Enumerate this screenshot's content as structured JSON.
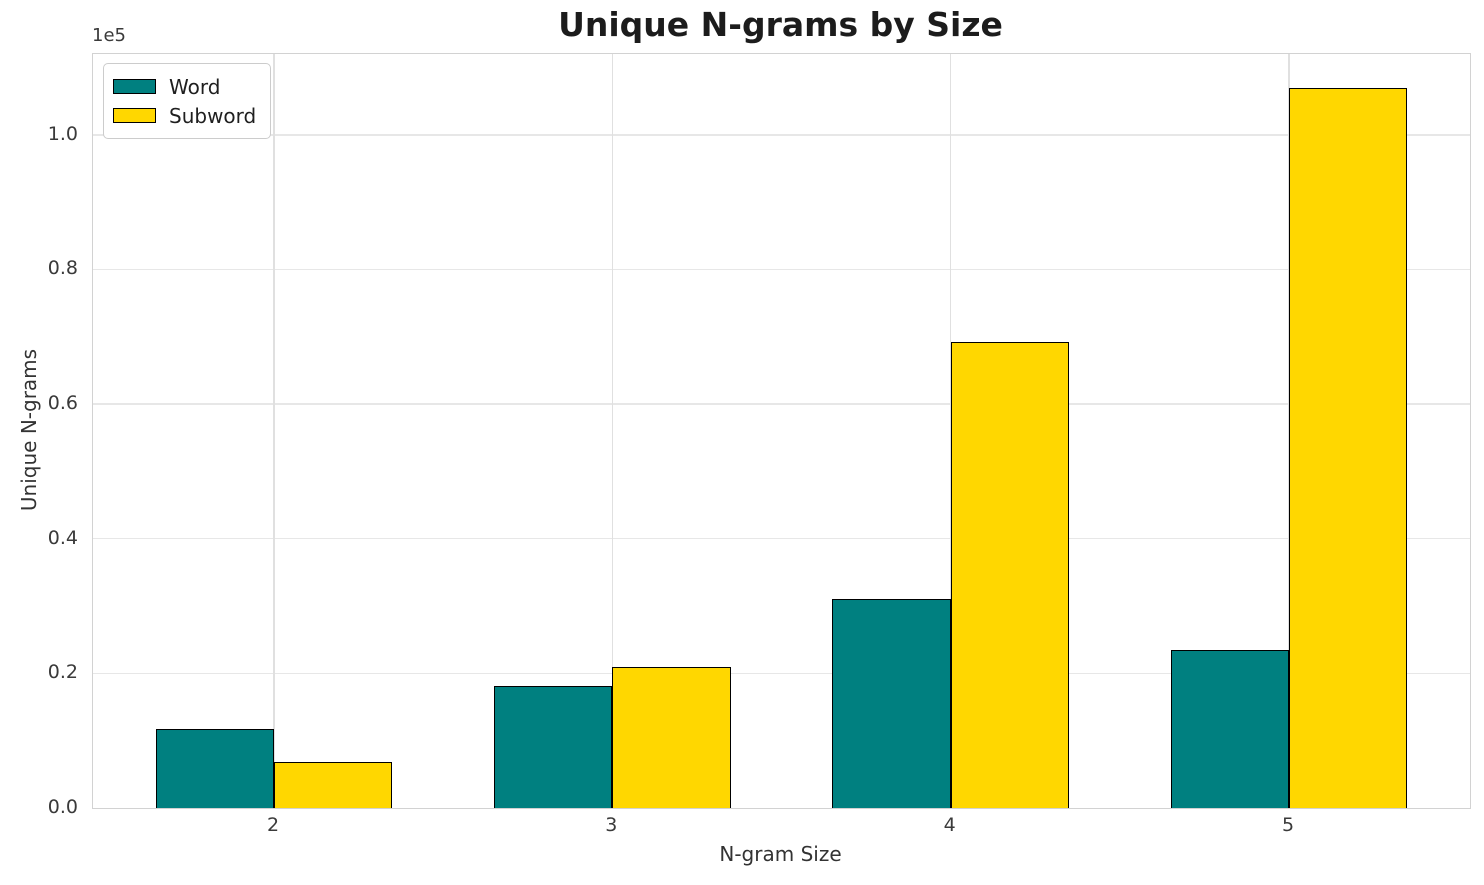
{
  "chart_data": {
    "type": "bar",
    "title": "Unique N-grams by Size",
    "xlabel": "N-gram Size",
    "ylabel": "Unique N-grams",
    "categories": [
      "2",
      "3",
      "4",
      "5"
    ],
    "series": [
      {
        "name": "Word",
        "color": "#008080",
        "edge_color": "#000000",
        "values": [
          11700,
          18100,
          31000,
          23500
        ]
      },
      {
        "name": "Subword",
        "color": "#FFD700",
        "edge_color": "#000000",
        "values": [
          6800,
          21000,
          69200,
          106900
        ]
      }
    ],
    "y_ticks": [
      0.0,
      0.2,
      0.4,
      0.6,
      0.8,
      1.0
    ],
    "y_tick_labels": [
      "0.0",
      "0.2",
      "0.4",
      "0.6",
      "0.8",
      "1.0"
    ],
    "y_scale_factor": 100000,
    "y_offset_label": "1e5",
    "ylim": [
      0,
      112000
    ],
    "xlim_units": [
      1.465,
      5.535
    ],
    "bar_width_units": 0.35,
    "grid": true,
    "legend": {
      "position": "upper-left",
      "entries": [
        "Word",
        "Subword"
      ]
    },
    "colors": {
      "grid": "#e7e7e7",
      "spine": "#d2d2d2",
      "title_text": "#1c1c1c",
      "tick_text": "#3a3a3a"
    }
  }
}
